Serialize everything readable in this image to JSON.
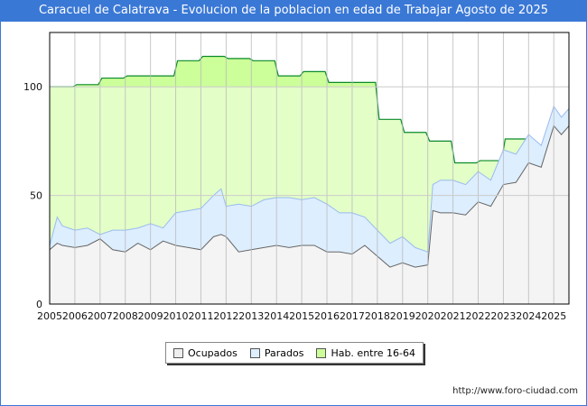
{
  "chart_data": {
    "type": "area",
    "title": "Caracuel de Calatrava - Evolucion de la poblacion en edad de Trabajar Agosto de 2025",
    "xlabel": "",
    "ylabel": "",
    "ylim": [
      0,
      125
    ],
    "xlim": [
      2005,
      2025.6
    ],
    "yticks": [
      0,
      50,
      100
    ],
    "xticks": [
      "2005",
      "2006",
      "2007",
      "2008",
      "2009",
      "2010",
      "2011",
      "2012",
      "2013",
      "2014",
      "2015",
      "2016",
      "2017",
      "2018",
      "2019",
      "2020",
      "2021",
      "2022",
      "2023",
      "2024",
      "2025"
    ],
    "grid": true,
    "legend_position": "bottom",
    "series": [
      {
        "name": "Hab. entre 16-64",
        "color": "#ccff99",
        "line": "#0a8a2a",
        "steps": [
          [
            2005,
            100
          ],
          [
            2006,
            101
          ],
          [
            2007,
            104
          ],
          [
            2008,
            105
          ],
          [
            2009,
            105
          ],
          [
            2010,
            112
          ],
          [
            2011,
            114
          ],
          [
            2012,
            113
          ],
          [
            2013,
            112
          ],
          [
            2014,
            105
          ],
          [
            2015,
            107
          ],
          [
            2016,
            102
          ],
          [
            2017,
            102
          ],
          [
            2018,
            85
          ],
          [
            2019,
            79
          ],
          [
            2020,
            75
          ],
          [
            2021,
            65
          ],
          [
            2022,
            66
          ],
          [
            2023,
            76
          ]
        ]
      },
      {
        "name": "Parados",
        "color": "#ddeeff",
        "line": "#99bbee",
        "x": [
          2005,
          2005.3,
          2005.5,
          2006,
          2006.5,
          2007,
          2007.5,
          2008,
          2008.5,
          2009,
          2009.5,
          2010,
          2010.5,
          2011,
          2011.5,
          2011.8,
          2012,
          2012.5,
          2013,
          2013.5,
          2014,
          2014.5,
          2015,
          2015.5,
          2016,
          2016.5,
          2017,
          2017.5,
          2018,
          2018.5,
          2019,
          2019.5,
          2020,
          2020.2,
          2020.5,
          2021,
          2021.5,
          2022,
          2022.5,
          2023,
          2023.5,
          2024,
          2024.5,
          2025,
          2025.3,
          2025.6
        ],
        "total": [
          27,
          40,
          36,
          34,
          35,
          32,
          34,
          34,
          35,
          37,
          35,
          42,
          43,
          44,
          50,
          53,
          45,
          46,
          45,
          48,
          49,
          49,
          48,
          49,
          46,
          42,
          42,
          40,
          34,
          28,
          31,
          26,
          24,
          55,
          57,
          57,
          55,
          61,
          57,
          71,
          69,
          78,
          73,
          91,
          86,
          90
        ]
      },
      {
        "name": "Ocupados",
        "color": "#eeeeee",
        "line": "#666666",
        "x": [
          2005,
          2005.3,
          2005.5,
          2006,
          2006.5,
          2007,
          2007.5,
          2008,
          2008.5,
          2009,
          2009.5,
          2010,
          2010.5,
          2011,
          2011.5,
          2011.8,
          2012,
          2012.5,
          2013,
          2013.5,
          2014,
          2014.5,
          2015,
          2015.5,
          2016,
          2016.5,
          2017,
          2017.5,
          2018,
          2018.5,
          2019,
          2019.5,
          2020,
          2020.2,
          2020.5,
          2021,
          2021.5,
          2022,
          2022.5,
          2023,
          2023.5,
          2024,
          2024.5,
          2025,
          2025.3,
          2025.6
        ],
        "values": [
          25,
          28,
          27,
          26,
          27,
          30,
          25,
          24,
          28,
          25,
          29,
          27,
          26,
          25,
          31,
          32,
          31,
          24,
          25,
          26,
          27,
          26,
          27,
          27,
          24,
          24,
          23,
          27,
          22,
          17,
          19,
          17,
          18,
          43,
          42,
          42,
          41,
          47,
          45,
          55,
          56,
          65,
          63,
          82,
          78,
          82
        ]
      }
    ]
  },
  "legend": {
    "ocupados": "Ocupados",
    "parados": "Parados",
    "hab": "Hab. entre 16-64"
  },
  "footer_url": "http://www.foro-ciudad.com"
}
